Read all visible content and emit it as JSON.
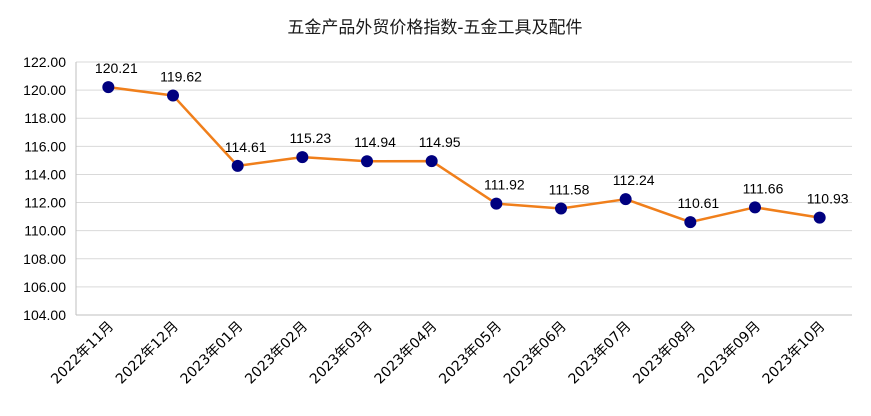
{
  "chart_data": {
    "type": "line",
    "title": "五金产品外贸价格指数-五金工具及配件",
    "categories": [
      "2022年11月",
      "2022年12月",
      "2023年01月",
      "2023年02月",
      "2023年03月",
      "2023年04月",
      "2023年05月",
      "2023年06月",
      "2023年07月",
      "2023年08月",
      "2023年09月",
      "2023年10月"
    ],
    "values": [
      120.21,
      119.62,
      114.61,
      115.23,
      114.94,
      114.95,
      111.92,
      111.58,
      112.24,
      110.61,
      111.66,
      110.93
    ],
    "data_labels": [
      "120.21",
      "119.62",
      "114.61",
      "115.23",
      "114.94",
      "114.95",
      "111.92",
      "111.58",
      "112.24",
      "110.61",
      "111.66",
      "110.93"
    ],
    "y_ticks": [
      "104.00",
      "106.00",
      "108.00",
      "110.00",
      "112.00",
      "114.00",
      "116.00",
      "118.00",
      "120.00",
      "122.00"
    ],
    "ylim": [
      104,
      122
    ],
    "ystep": 2,
    "xlabel": "",
    "ylabel": "",
    "grid": true,
    "legend": "none",
    "colors": {
      "line": "#F07F1B",
      "marker": "#00007F",
      "grid": "#D9D9D9",
      "text": "#000000"
    }
  }
}
